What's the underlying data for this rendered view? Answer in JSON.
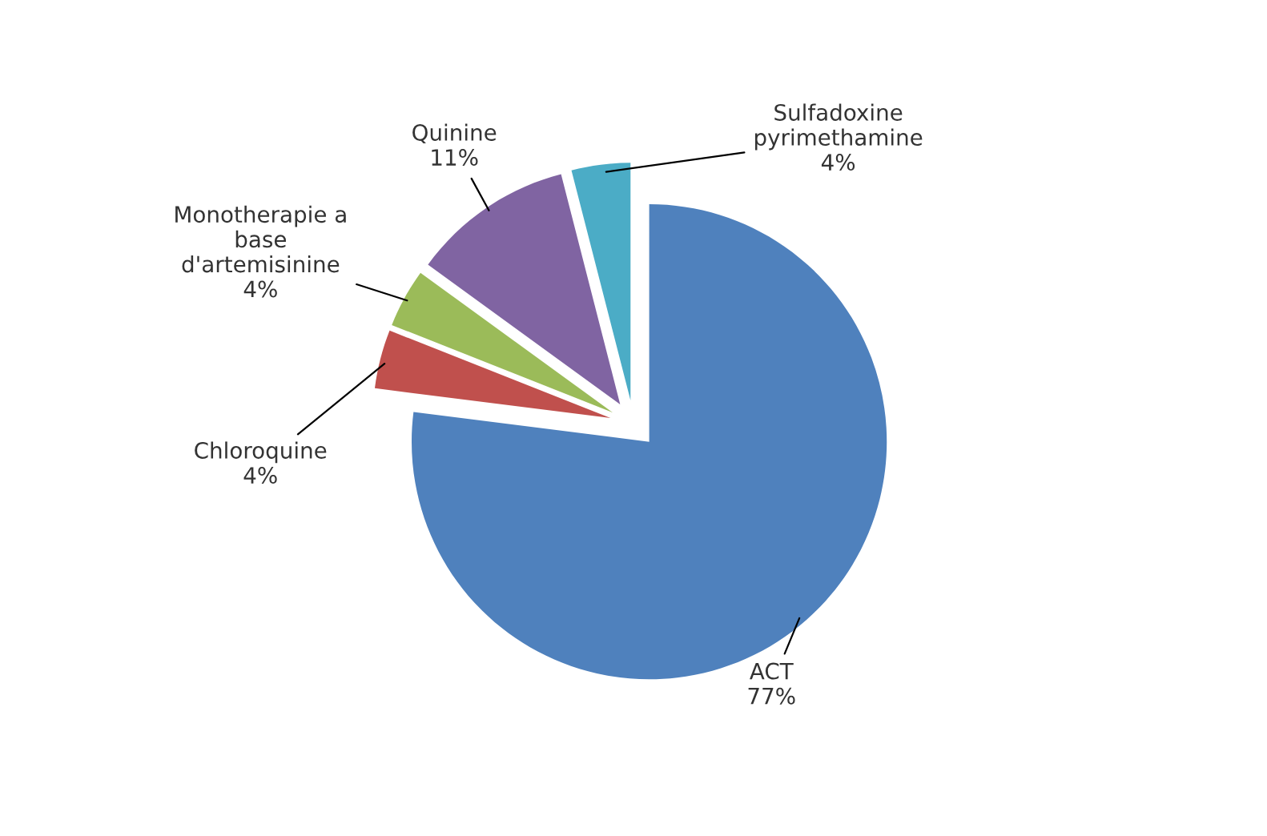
{
  "chart_data": {
    "type": "pie",
    "categories": [
      "ACT",
      "Chloroquine",
      "Monotherapie a\nbase\nd'artemisinine",
      "Quinine",
      "Sulfadoxine\npyrimethamine"
    ],
    "values": [
      77,
      4,
      4,
      11,
      4
    ],
    "value_labels": [
      "77%",
      "4%",
      "4%",
      "11%",
      "4%"
    ],
    "colors": [
      "#4f81bd",
      "#c0504d",
      "#9bbb59",
      "#8064a2",
      "#4bacc6"
    ],
    "legend": false
  }
}
